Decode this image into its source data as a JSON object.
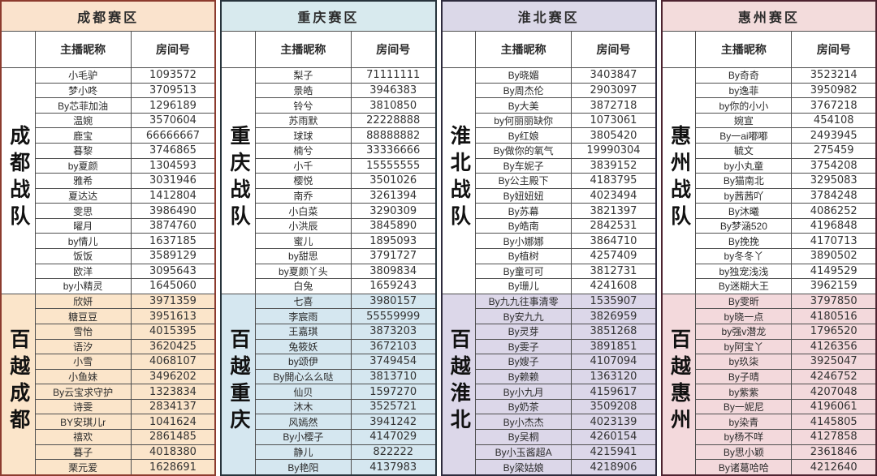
{
  "columns": {
    "nickname": "主播昵称",
    "room": "房间号"
  },
  "tables": [
    {
      "region": "成都赛区",
      "header_bg": "#fae3cd",
      "border_color": "#8c3b2e",
      "teams": [
        {
          "label": "成都战队",
          "bg": "#ffffff",
          "rows": [
            [
              "小毛驴",
              "1093572"
            ],
            [
              "梦小咚",
              "3709513"
            ],
            [
              "By芯菲加油",
              "1296189"
            ],
            [
              "温婉",
              "3570604"
            ],
            [
              "鹿宝",
              "66666667"
            ],
            [
              "暮黎",
              "3746865"
            ],
            [
              "by夏颜",
              "1304593"
            ],
            [
              "雅希",
              "3031946"
            ],
            [
              "夏达达",
              "1412804"
            ],
            [
              "雯思",
              "3986490"
            ],
            [
              "曜月",
              "3874760"
            ],
            [
              "by情儿",
              "1637185"
            ],
            [
              "饭饭",
              "3589129"
            ],
            [
              "欧洋",
              "3095643"
            ],
            [
              "by小精灵",
              "1645060"
            ]
          ]
        },
        {
          "label": "百越成都",
          "bg": "#fbe5ca",
          "rows": [
            [
              "欣妍",
              "3971359"
            ],
            [
              "糖豆豆",
              "3951613"
            ],
            [
              "雪怡",
              "4015395"
            ],
            [
              "语汐",
              "3620425"
            ],
            [
              "小雪",
              "4068107"
            ],
            [
              "小鱼妹",
              "3496202"
            ],
            [
              "By云宝求守护",
              "1323834"
            ],
            [
              "诗雯",
              "2834137"
            ],
            [
              "BY安琪儿r",
              "1041624"
            ],
            [
              "禧欢",
              "2861485"
            ],
            [
              "暮子",
              "4018380"
            ],
            [
              "栗元爱",
              "1628691"
            ]
          ]
        }
      ]
    },
    {
      "region": "重庆赛区",
      "header_bg": "#d8eaee",
      "border_color": "#27333b",
      "teams": [
        {
          "label": "重庆战队",
          "bg": "#ffffff",
          "rows": [
            [
              "梨子",
              "71111111"
            ],
            [
              "景皓",
              "3946383"
            ],
            [
              "铃兮",
              "3810850"
            ],
            [
              "苏雨默",
              "22228888"
            ],
            [
              "球球",
              "88888882"
            ],
            [
              "楠兮",
              "33336666"
            ],
            [
              "小千",
              "15555555"
            ],
            [
              "樱悦",
              "3501026"
            ],
            [
              "南乔",
              "3261394"
            ],
            [
              "小白菜",
              "3290309"
            ],
            [
              "小洪辰",
              "3845890"
            ],
            [
              "蜜儿",
              "1895093"
            ],
            [
              "by甜思",
              "3791727"
            ],
            [
              "by夏颜丫头",
              "3809834"
            ],
            [
              "白兔",
              "1659243"
            ]
          ]
        },
        {
          "label": "百越重庆",
          "bg": "#d5e7f0",
          "rows": [
            [
              "七喜",
              "3980157"
            ],
            [
              "李宸雨",
              "55559999"
            ],
            [
              "王嘉琪",
              "3873203"
            ],
            [
              "兔筱妖",
              "3672103"
            ],
            [
              "by颂伊",
              "3749454"
            ],
            [
              "By開心么么哒",
              "3813710"
            ],
            [
              "仙贝",
              "1597270"
            ],
            [
              "沐木",
              "3525721"
            ],
            [
              "风嫣然",
              "3941242"
            ],
            [
              "By小樱子",
              "4147029"
            ],
            [
              "静儿",
              "822222"
            ],
            [
              "By艳阳",
              "4137983"
            ]
          ]
        }
      ]
    },
    {
      "region": "淮北赛区",
      "header_bg": "#dbd8e8",
      "border_color": "#2e2b3d",
      "teams": [
        {
          "label": "淮北战队",
          "bg": "#ffffff",
          "rows": [
            [
              "By晓媚",
              "3403847"
            ],
            [
              "By周杰伦",
              "2903097"
            ],
            [
              "By大美",
              "3872718"
            ],
            [
              "by何丽丽缺你",
              "1073061"
            ],
            [
              "By红娘",
              "3805420"
            ],
            [
              "By做你的氧气",
              "19990304"
            ],
            [
              "By车妮子",
              "3839152"
            ],
            [
              "By公主殿下",
              "4183795"
            ],
            [
              "By妞妞妞",
              "4023494"
            ],
            [
              "By苏幕",
              "3821397"
            ],
            [
              "By皓南",
              "2842531"
            ],
            [
              "By小娜娜",
              "3864710"
            ],
            [
              "By植树",
              "4257409"
            ],
            [
              "By童可可",
              "3812731"
            ],
            [
              "By珊儿",
              "4241608"
            ]
          ]
        },
        {
          "label": "百越淮北",
          "bg": "#dcd7e9",
          "rows": [
            [
              "By九九往事清零",
              "1535907"
            ],
            [
              "By安九九",
              "3826959"
            ],
            [
              "By灵芽",
              "3851268"
            ],
            [
              "By雯子",
              "3891851"
            ],
            [
              "By嫂子",
              "4107094"
            ],
            [
              "By赖赖",
              "1363120"
            ],
            [
              "By小九月",
              "4159617"
            ],
            [
              "By奶茶",
              "3509208"
            ],
            [
              "By小杰杰",
              "4023139"
            ],
            [
              "By吴桐",
              "4260154"
            ],
            [
              "By小玉酱超A",
              "4215941"
            ],
            [
              "By梁姑娘",
              "4218906"
            ]
          ]
        }
      ]
    },
    {
      "region": "惠州赛区",
      "header_bg": "#f3dcdc",
      "border_color": "#4d2330",
      "teams": [
        {
          "label": "惠州战队",
          "bg": "#ffffff",
          "rows": [
            [
              "By奇奇",
              "3523214"
            ],
            [
              "by逸菲",
              "3950982"
            ],
            [
              "by你的小小",
              "3767218"
            ],
            [
              "婉宣",
              "454108"
            ],
            [
              "By一ai嘟嘟",
              "2493945"
            ],
            [
              "毓文",
              "275459"
            ],
            [
              "by小丸童",
              "3754208"
            ],
            [
              "By猫南北",
              "3295083"
            ],
            [
              "by茜茜吖",
              "3784248"
            ],
            [
              "By沐曦",
              "4086252"
            ],
            [
              "By梦涵520",
              "4196848"
            ],
            [
              "By挽挽",
              "4170713"
            ],
            [
              "by冬冬丫",
              "3890502"
            ],
            [
              "by独宠浅浅",
              "4149529"
            ],
            [
              "By迷糊大王",
              "3962159"
            ]
          ]
        },
        {
          "label": "百越惠州",
          "bg": "#f3d9dc",
          "rows": [
            [
              "By雯昕",
              "3797850"
            ],
            [
              "by晓一点",
              "4180516"
            ],
            [
              "by强v潜龙",
              "1796520"
            ],
            [
              "by阿宝丫",
              "4126356"
            ],
            [
              "by玖柒",
              "3925047"
            ],
            [
              "By子晴",
              "4246752"
            ],
            [
              "by紫紫",
              "4207048"
            ],
            [
              "By一妮尼",
              "4196061"
            ],
            [
              "by染青",
              "4145805"
            ],
            [
              "by杨不咩",
              "4127858"
            ],
            [
              "By思小颖",
              "2361846"
            ],
            [
              "By诸葛哈哈",
              "4212640"
            ]
          ]
        }
      ]
    }
  ]
}
